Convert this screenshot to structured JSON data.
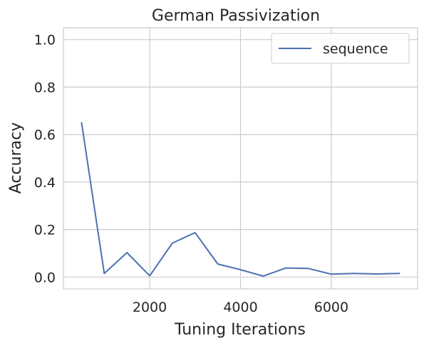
{
  "chart_data": {
    "type": "line",
    "title": "German Passivization",
    "xlabel": "Tuning Iterations",
    "ylabel": "Accuracy",
    "xlim": [
      100,
      7900
    ],
    "ylim": [
      -0.05,
      1.05
    ],
    "xticks": [
      2000,
      4000,
      6000
    ],
    "yticks": [
      0.0,
      0.2,
      0.4,
      0.6,
      0.8,
      1.0
    ],
    "grid": true,
    "legend_position": "top-right",
    "series": [
      {
        "name": "sequence",
        "color": "#4c72b0",
        "x": [
          500,
          1000,
          1500,
          2000,
          2500,
          3000,
          3500,
          4000,
          4500,
          5000,
          5500,
          6000,
          6500,
          7000,
          7500
        ],
        "y": [
          0.65,
          0.015,
          0.103,
          0.005,
          0.143,
          0.187,
          0.055,
          0.031,
          0.004,
          0.038,
          0.036,
          0.012,
          0.015,
          0.013,
          0.015
        ]
      }
    ]
  }
}
